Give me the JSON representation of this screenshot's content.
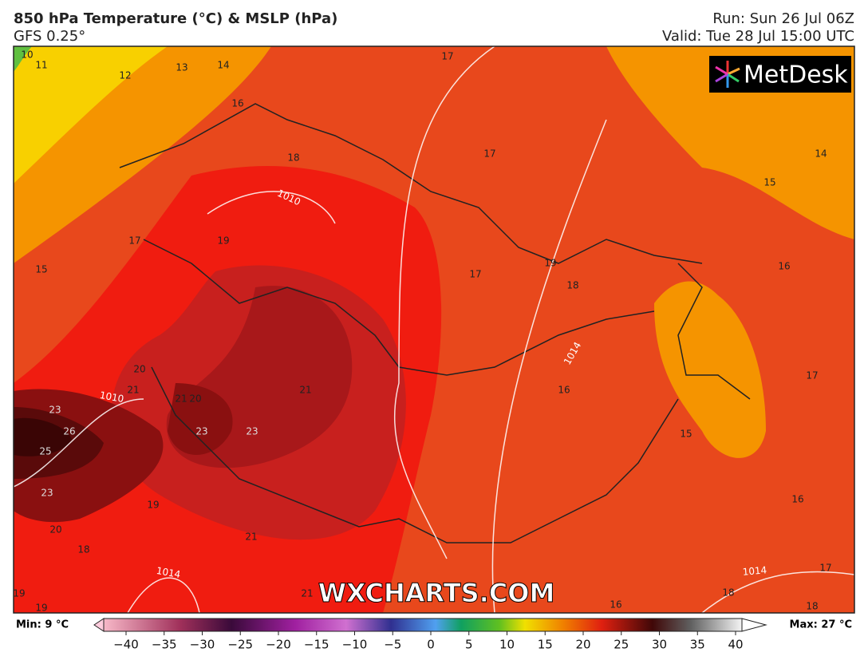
{
  "header": {
    "title": "850 hPa Temperature (°C) & MSLP (hPa)",
    "model": "GFS 0.25°",
    "run": "Run: Sun 26 Jul 06Z",
    "valid": "Valid: Tue 28 Jul 15:00 UTC"
  },
  "logo": "MetDesk",
  "watermark": "WXCHARTS.COM",
  "temperature_labels": [
    10,
    11,
    12,
    13,
    14,
    16,
    17,
    18,
    17,
    14,
    15,
    17,
    19,
    15,
    17,
    19,
    18,
    16,
    20,
    21,
    21,
    20,
    21,
    16,
    17,
    23,
    26,
    23,
    23,
    15,
    25,
    23,
    19,
    16,
    20,
    18,
    21,
    19,
    19,
    21,
    16,
    17,
    18,
    18
  ],
  "pressure_labels": [
    1010,
    1010,
    1014,
    1014,
    1014
  ],
  "colorbar": {
    "min": "Min: 9 °C",
    "max": "Max: 27 °C",
    "ticks": [
      {
        "value": -40,
        "label": "−40"
      },
      {
        "value": -35,
        "label": "−35"
      },
      {
        "value": -30,
        "label": "−30"
      },
      {
        "value": -25,
        "label": "−25"
      },
      {
        "value": -20,
        "label": "−20"
      },
      {
        "value": -15,
        "label": "−15"
      },
      {
        "value": -10,
        "label": "−10"
      },
      {
        "value": -5,
        "label": "−5"
      },
      0,
      5,
      10,
      15,
      20,
      25,
      30,
      35,
      40
    ]
  }
}
